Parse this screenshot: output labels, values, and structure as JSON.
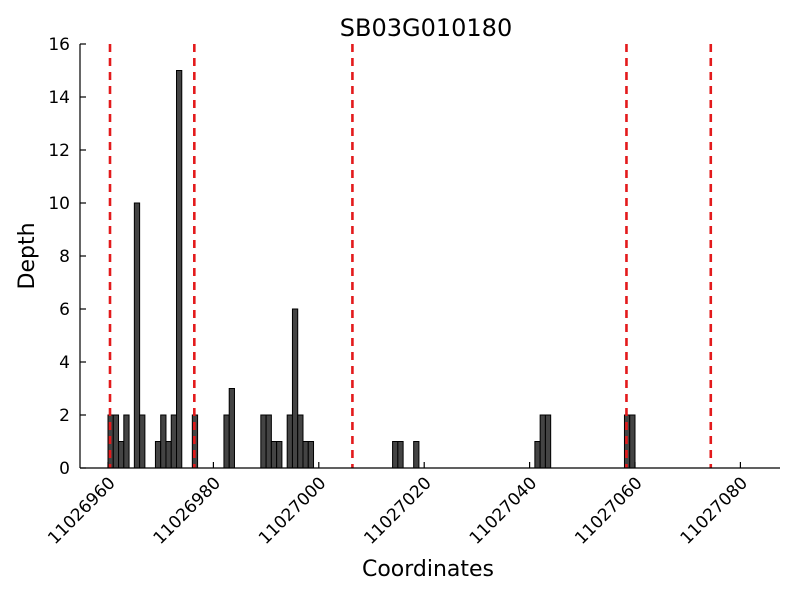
{
  "chart_data": {
    "type": "bar",
    "title": "SB03G010180",
    "xlabel": "Coordinates",
    "ylabel": "Depth",
    "xlim": [
      11026956,
      11027083
    ],
    "ylim": [
      0,
      16
    ],
    "x_ticks": [
      11026960,
      11026980,
      11027000,
      11027020,
      11027040,
      11027060,
      11027080
    ],
    "y_ticks": [
      0,
      2,
      4,
      6,
      8,
      10,
      12,
      14,
      16
    ],
    "bar_color": "#444444",
    "series": [
      {
        "name": "depth",
        "x": [
          11026960,
          11026961,
          11026962,
          11026963,
          11026965,
          11026966,
          11026969,
          11026970,
          11026971,
          11026972,
          11026973,
          11026976,
          11026982,
          11026983,
          11026989,
          11026990,
          11026991,
          11026992,
          11026994,
          11026995,
          11026996,
          11026997,
          11026998,
          11027014,
          11027015,
          11027018,
          11027041,
          11027042,
          11027043,
          11027058,
          11027059
        ],
        "values": [
          2,
          2,
          1,
          2,
          10,
          2,
          1,
          2,
          1,
          2,
          15,
          2,
          2,
          3,
          2,
          2,
          1,
          1,
          2,
          6,
          2,
          1,
          1,
          1,
          1,
          1,
          1,
          2,
          2,
          2,
          2
        ]
      }
    ],
    "reference_lines": {
      "color": "#e31a1c",
      "style": "dashed",
      "x": [
        11026960,
        11026976,
        11027006,
        11027058,
        11027074
      ]
    }
  }
}
